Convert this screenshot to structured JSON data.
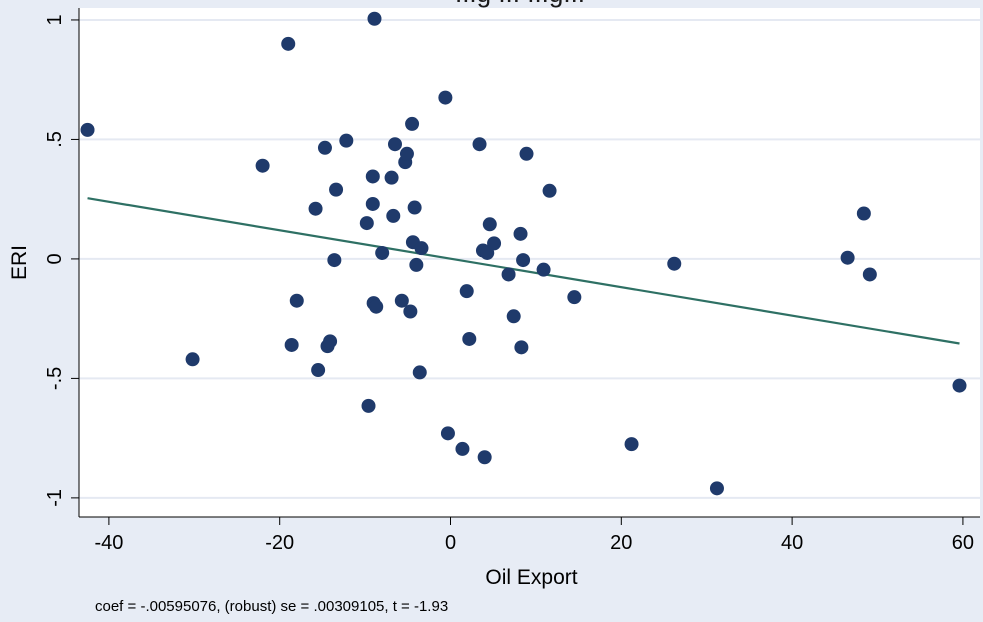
{
  "chart_data": {
    "type": "scatter",
    "title": "...g ... ...g...",
    "xlabel": "Oil Export",
    "ylabel": "ERI",
    "note": "coef = -.00595076, (robust) se = .00309105, t = -1.93",
    "xlim": [
      -43.5,
      62
    ],
    "ylim": [
      -1.08,
      1.05
    ],
    "x_ticks": [
      -40,
      -20,
      0,
      20,
      40,
      60
    ],
    "x_tick_labels": [
      "-40",
      "-20",
      "0",
      "20",
      "40",
      "60"
    ],
    "y_ticks": [
      1,
      0.5,
      0,
      -0.5,
      -1
    ],
    "y_tick_labels": [
      "1",
      ".5",
      "0",
      "-.5",
      "-1"
    ],
    "grid": "horizontal",
    "legend": "none",
    "colors": {
      "points": "#1f3a6b",
      "fit_line": "#2e7064",
      "gridline": "#e5e9f2",
      "plot_bg": "#ffffff",
      "page_bg": "#e7ecf5"
    },
    "points": [
      {
        "x": -42.5,
        "y": 0.54
      },
      {
        "x": -30.2,
        "y": -0.42
      },
      {
        "x": -22.0,
        "y": 0.39
      },
      {
        "x": -19.0,
        "y": 0.9
      },
      {
        "x": -18.6,
        "y": -0.36
      },
      {
        "x": -18.0,
        "y": -0.175
      },
      {
        "x": -15.8,
        "y": 0.21
      },
      {
        "x": -15.5,
        "y": -0.465
      },
      {
        "x": -14.7,
        "y": 0.465
      },
      {
        "x": -14.4,
        "y": -0.365
      },
      {
        "x": -14.1,
        "y": -0.345
      },
      {
        "x": -13.6,
        "y": -0.005
      },
      {
        "x": -13.4,
        "y": 0.29
      },
      {
        "x": -12.2,
        "y": 0.495
      },
      {
        "x": -9.8,
        "y": 0.15
      },
      {
        "x": -9.6,
        "y": -0.615
      },
      {
        "x": -9.1,
        "y": 0.345
      },
      {
        "x": -9.1,
        "y": 0.23
      },
      {
        "x": -9.0,
        "y": -0.185
      },
      {
        "x": -8.9,
        "y": 1.005
      },
      {
        "x": -8.7,
        "y": -0.2
      },
      {
        "x": -8.0,
        "y": 0.025
      },
      {
        "x": -6.9,
        "y": 0.34
      },
      {
        "x": -6.7,
        "y": 0.18
      },
      {
        "x": -6.5,
        "y": 0.48
      },
      {
        "x": -5.7,
        "y": -0.175
      },
      {
        "x": -5.3,
        "y": 0.405
      },
      {
        "x": -5.1,
        "y": 0.44
      },
      {
        "x": -4.7,
        "y": -0.22
      },
      {
        "x": -4.5,
        "y": 0.565
      },
      {
        "x": -4.4,
        "y": 0.07
      },
      {
        "x": -4.2,
        "y": 0.215
      },
      {
        "x": -4.0,
        "y": -0.025
      },
      {
        "x": -3.6,
        "y": -0.475
      },
      {
        "x": -3.4,
        "y": 0.045
      },
      {
        "x": -0.6,
        "y": 0.675
      },
      {
        "x": -0.3,
        "y": -0.73
      },
      {
        "x": 1.4,
        "y": -0.795
      },
      {
        "x": 1.9,
        "y": -0.135
      },
      {
        "x": 2.2,
        "y": -0.335
      },
      {
        "x": 3.4,
        "y": 0.48
      },
      {
        "x": 3.8,
        "y": 0.035
      },
      {
        "x": 4.0,
        "y": -0.83
      },
      {
        "x": 4.3,
        "y": 0.025
      },
      {
        "x": 4.6,
        "y": 0.145
      },
      {
        "x": 5.1,
        "y": 0.065
      },
      {
        "x": 6.8,
        "y": -0.065
      },
      {
        "x": 7.4,
        "y": -0.24
      },
      {
        "x": 8.2,
        "y": 0.105
      },
      {
        "x": 8.3,
        "y": -0.37
      },
      {
        "x": 8.5,
        "y": -0.005
      },
      {
        "x": 8.9,
        "y": 0.44
      },
      {
        "x": 10.9,
        "y": -0.045
      },
      {
        "x": 11.6,
        "y": 0.285
      },
      {
        "x": 14.5,
        "y": -0.16
      },
      {
        "x": 21.2,
        "y": -0.775
      },
      {
        "x": 26.2,
        "y": -0.02
      },
      {
        "x": 31.2,
        "y": -0.96
      },
      {
        "x": 46.5,
        "y": 0.005
      },
      {
        "x": 48.4,
        "y": 0.19
      },
      {
        "x": 49.1,
        "y": -0.065
      },
      {
        "x": 59.6,
        "y": -0.53
      }
    ],
    "fit_line": {
      "x": [
        -42.5,
        59.6
      ],
      "y": [
        0.254,
        -0.354
      ]
    }
  }
}
